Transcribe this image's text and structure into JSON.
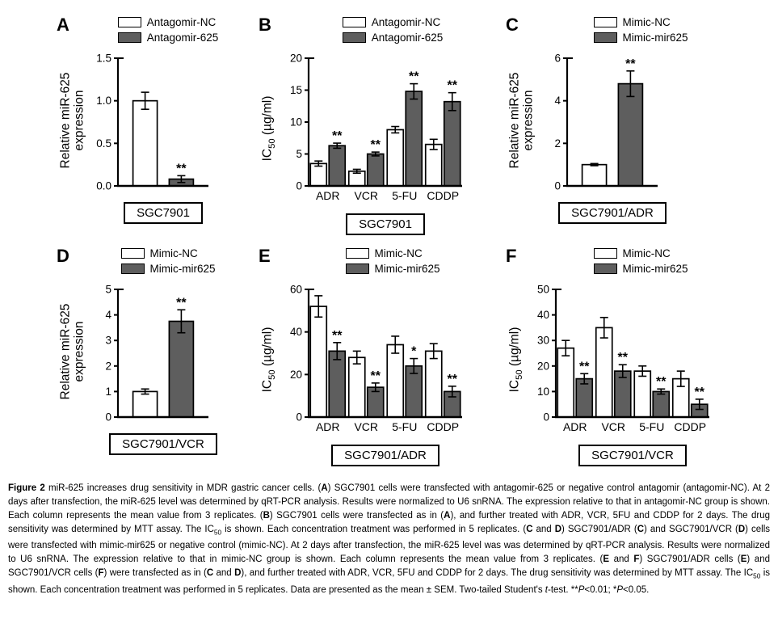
{
  "colors": {
    "bar_fill_control": "#ffffff",
    "bar_fill_treatment": "#5e5e5e",
    "stroke": "#000000",
    "background": "#ffffff"
  },
  "chart_data": [
    {
      "type": "bar",
      "panel": "A",
      "cell_line": "SGC7901",
      "legend": [
        "Antagomir-NC",
        "Antagomir-625"
      ],
      "ylabel": "Relative miR-625 expression",
      "ylabel_segments": [
        {
          "t": "Relative miR-625"
        },
        {
          "br": true
        },
        {
          "t": "expression"
        }
      ],
      "ylim": [
        0,
        1.5
      ],
      "yticks": [
        0,
        0.5,
        1.0,
        1.5
      ],
      "ytick_labels": [
        "0.0",
        "0.5",
        "1.0",
        "1.5"
      ],
      "categories": [
        ""
      ],
      "grid": false,
      "series": [
        {
          "name": "Antagomir-NC",
          "fill": "#ffffff",
          "values": [
            1.0
          ],
          "errors": [
            0.1
          ]
        },
        {
          "name": "Antagomir-625",
          "fill": "#5e5e5e",
          "values": [
            0.08
          ],
          "errors": [
            0.04
          ],
          "sig": [
            "**"
          ]
        }
      ]
    },
    {
      "type": "bar",
      "panel": "B",
      "cell_line": "SGC7901",
      "legend": [
        "Antagomir-NC",
        "Antagomir-625"
      ],
      "ylabel": "IC50 (µg/ml)",
      "ylabel_segments": [
        {
          "t": "IC"
        },
        {
          "t": "50",
          "sub": true
        },
        {
          "t": " (µg/ml)"
        }
      ],
      "ylim": [
        0,
        20
      ],
      "yticks": [
        0,
        5,
        10,
        15,
        20
      ],
      "ytick_labels": [
        "0",
        "5",
        "10",
        "15",
        "20"
      ],
      "categories": [
        "ADR",
        "VCR",
        "5-FU",
        "CDDP"
      ],
      "grid": false,
      "series": [
        {
          "name": "Antagomir-NC",
          "fill": "#ffffff",
          "values": [
            3.5,
            2.3,
            8.8,
            6.5
          ],
          "errors": [
            0.4,
            0.3,
            0.5,
            0.8
          ]
        },
        {
          "name": "Antagomir-625",
          "fill": "#5e5e5e",
          "values": [
            6.3,
            5.0,
            14.8,
            13.2
          ],
          "errors": [
            0.4,
            0.3,
            1.2,
            1.4
          ],
          "sig": [
            "**",
            "**",
            "**",
            "**"
          ]
        }
      ]
    },
    {
      "type": "bar",
      "panel": "C",
      "cell_line": "SGC7901/ADR",
      "legend": [
        "Mimic-NC",
        "Mimic-mir625"
      ],
      "ylabel": "Relative miR-625 expression",
      "ylabel_segments": [
        {
          "t": "Relative miR-625"
        },
        {
          "br": true
        },
        {
          "t": "expression"
        }
      ],
      "ylim": [
        0,
        6
      ],
      "yticks": [
        0,
        2,
        4,
        6
      ],
      "ytick_labels": [
        "0",
        "2",
        "4",
        "6"
      ],
      "categories": [
        ""
      ],
      "grid": false,
      "series": [
        {
          "name": "Mimic-NC",
          "fill": "#ffffff",
          "values": [
            1.0
          ],
          "errors": [
            0.05
          ]
        },
        {
          "name": "Mimic-mir625",
          "fill": "#5e5e5e",
          "values": [
            4.8
          ],
          "errors": [
            0.6
          ],
          "sig": [
            "**"
          ]
        }
      ]
    },
    {
      "type": "bar",
      "panel": "D",
      "cell_line": "SGC7901/VCR",
      "legend": [
        "Mimic-NC",
        "Mimic-mir625"
      ],
      "ylabel": "Relative miR-625 expression",
      "ylabel_segments": [
        {
          "t": "Relative miR-625"
        },
        {
          "br": true
        },
        {
          "t": "expression"
        }
      ],
      "ylim": [
        0,
        5
      ],
      "yticks": [
        0,
        1,
        2,
        3,
        4,
        5
      ],
      "ytick_labels": [
        "0",
        "1",
        "2",
        "3",
        "4",
        "5"
      ],
      "categories": [
        ""
      ],
      "grid": false,
      "series": [
        {
          "name": "Mimic-NC",
          "fill": "#ffffff",
          "values": [
            1.0
          ],
          "errors": [
            0.1
          ]
        },
        {
          "name": "Mimic-mir625",
          "fill": "#5e5e5e",
          "values": [
            3.75
          ],
          "errors": [
            0.45
          ],
          "sig": [
            "**"
          ]
        }
      ]
    },
    {
      "type": "bar",
      "panel": "E",
      "cell_line": "SGC7901/ADR",
      "legend": [
        "Mimic-NC",
        "Mimic-mir625"
      ],
      "ylabel": "IC50 (µg/ml)",
      "ylabel_segments": [
        {
          "t": "IC"
        },
        {
          "t": "50",
          "sub": true
        },
        {
          "t": " (µg/ml)"
        }
      ],
      "ylim": [
        0,
        60
      ],
      "yticks": [
        0,
        20,
        40,
        60
      ],
      "ytick_labels": [
        "0",
        "20",
        "40",
        "60"
      ],
      "categories": [
        "ADR",
        "VCR",
        "5-FU",
        "CDDP"
      ],
      "grid": false,
      "series": [
        {
          "name": "Mimic-NC",
          "fill": "#ffffff",
          "values": [
            52,
            28,
            34,
            31
          ],
          "errors": [
            5,
            3,
            4,
            3.5
          ]
        },
        {
          "name": "Mimic-mir625",
          "fill": "#5e5e5e",
          "values": [
            31,
            14,
            24,
            12
          ],
          "errors": [
            4,
            2,
            3.5,
            2.5
          ],
          "sig": [
            "**",
            "**",
            "*",
            "**"
          ]
        }
      ]
    },
    {
      "type": "bar",
      "panel": "F",
      "cell_line": "SGC7901/VCR",
      "legend": [
        "Mimic-NC",
        "Mimic-mir625"
      ],
      "ylabel": "IC50 (µg/ml)",
      "ylabel_segments": [
        {
          "t": "IC"
        },
        {
          "t": "50",
          "sub": true
        },
        {
          "t": " (µg/ml)"
        }
      ],
      "ylim": [
        0,
        50
      ],
      "yticks": [
        0,
        10,
        20,
        30,
        40,
        50
      ],
      "ytick_labels": [
        "0",
        "10",
        "20",
        "30",
        "40",
        "50"
      ],
      "categories": [
        "ADR",
        "VCR",
        "5-FU",
        "CDDP"
      ],
      "grid": false,
      "series": [
        {
          "name": "Mimic-NC",
          "fill": "#ffffff",
          "values": [
            27,
            35,
            18,
            15
          ],
          "errors": [
            3,
            4,
            2,
            3
          ]
        },
        {
          "name": "Mimic-mir625",
          "fill": "#5e5e5e",
          "values": [
            15,
            18,
            10,
            5
          ],
          "errors": [
            2,
            2.5,
            1,
            2
          ],
          "sig": [
            "**",
            "**",
            "**",
            "**"
          ]
        }
      ]
    }
  ],
  "caption": {
    "segments": [
      {
        "t": "Figure 2",
        "b": true
      },
      {
        "t": " miR-625 increases drug sensitivity in MDR gastric cancer cells. ("
      },
      {
        "t": "A",
        "b": true
      },
      {
        "t": ") SGC7901 cells were transfected with antagomir-625 or negative control antagomir (antagomir-NC). At 2 days after transfection, the miR-625 level was determined by qRT-PCR analysis. Results were normalized to U6 snRNA. The expression relative to that in antagomir-NC group is shown. Each column represents the mean value from 3 replicates. ("
      },
      {
        "t": "B",
        "b": true
      },
      {
        "t": ") SGC7901 cells were transfected as in ("
      },
      {
        "t": "A",
        "b": true
      },
      {
        "t": "), and further treated with ADR, VCR, 5FU and CDDP for 2 days. The drug sensitivity was determined by MTT assay. The IC"
      },
      {
        "t": "50",
        "sub": true
      },
      {
        "t": " is shown. Each concentration treatment was performed in 5 replicates. ("
      },
      {
        "t": "C",
        "b": true
      },
      {
        "t": " and "
      },
      {
        "t": "D",
        "b": true
      },
      {
        "t": ") SGC7901/ADR ("
      },
      {
        "t": "C",
        "b": true
      },
      {
        "t": ") and SGC7901/VCR ("
      },
      {
        "t": "D",
        "b": true
      },
      {
        "t": ") cells were transfected with mimic-mir625 or negative control (mimic-NC). At 2 days after transfection, the miR-625 level was was determined by qRT-PCR analysis. Results were normalized to U6 snRNA. The expression relative to that in mimic-NC group is shown. Each column represents the mean value from 3 replicates. ("
      },
      {
        "t": "E",
        "b": true
      },
      {
        "t": " and "
      },
      {
        "t": "F",
        "b": true
      },
      {
        "t": ") SGC7901/ADR cells ("
      },
      {
        "t": "E",
        "b": true
      },
      {
        "t": ") and SGC7901/VCR cells ("
      },
      {
        "t": "F",
        "b": true
      },
      {
        "t": ") were transfected as in ("
      },
      {
        "t": "C",
        "b": true
      },
      {
        "t": " and "
      },
      {
        "t": "D",
        "b": true
      },
      {
        "t": "), and further treated with ADR, VCR, 5FU and CDDP for 2 days. The drug sensitivity was determined by MTT assay. The IC"
      },
      {
        "t": "50",
        "sub": true
      },
      {
        "t": " is shown. Each concentration treatment was performed in 5 replicates. Data are presented as the mean ± SEM. Two-tailed Student's "
      },
      {
        "t": "t",
        "i": true
      },
      {
        "t": "-test. **"
      },
      {
        "t": "P",
        "i": true
      },
      {
        "t": "<0.01; *"
      },
      {
        "t": "P",
        "i": true
      },
      {
        "t": "<0.05."
      }
    ]
  }
}
